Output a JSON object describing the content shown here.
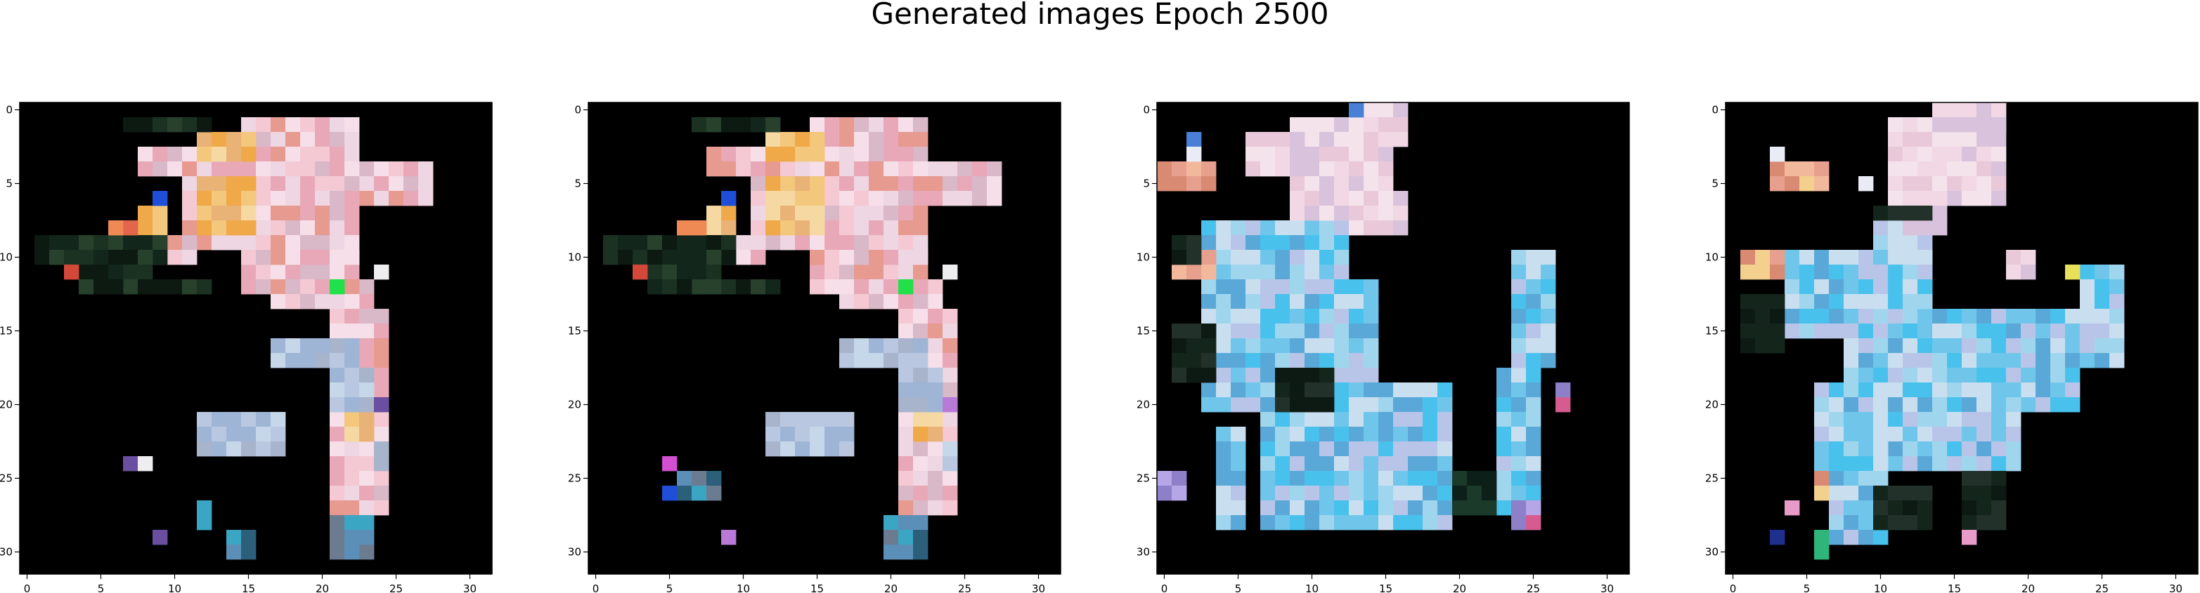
{
  "figure": {
    "title": "Generated images Epoch 2500",
    "background": "#ffffff",
    "image_background": "#000000"
  },
  "panels": [
    {
      "name": "panel-1",
      "xticks": [
        "0",
        "5",
        "10",
        "15",
        "20",
        "25",
        "30"
      ],
      "yticks": [
        "0",
        "5",
        "10",
        "15",
        "20",
        "25",
        "30"
      ],
      "blobs": [
        {
          "palette": [
            "#f4c9d3",
            "#eed6e2",
            "#e8a8b8",
            "#f6dfe8",
            "#d9b8c8",
            "#e79a8f"
          ],
          "cells": [
            [
              4,
              12,
              3,
              16
            ],
            [
              3,
              8,
              2,
              9
            ],
            [
              8,
              12,
              2,
              8
            ],
            [
              12,
              18,
              2,
              6
            ],
            [
              5,
              13,
              5,
              8
            ],
            [
              11,
              15,
              2,
              6
            ],
            [
              5,
              11,
              4,
              8
            ],
            [
              10,
              17,
              4,
              6
            ],
            [
              1,
              15,
              10,
              8
            ],
            [
              14,
              21,
              14,
              4
            ],
            [
              9,
              8,
              2,
              4
            ]
          ]
        },
        {
          "palette": [
            "#f0a948",
            "#f3c77c",
            "#e9b277",
            "#f6d9a2"
          ],
          "cells": [
            [
              2,
              12,
              2,
              4
            ],
            [
              5,
              12,
              4,
              4
            ],
            [
              7,
              8,
              2,
              2
            ],
            [
              19,
              22,
              4,
              2
            ]
          ]
        },
        {
          "palette": [
            "#b9c8e0",
            "#9fb5d6",
            "#c6d7ea",
            "#a8b3cc"
          ],
          "cells": [
            [
              16,
              17,
              2,
              6
            ],
            [
              18,
              21,
              3,
              3
            ],
            [
              21,
              12,
              3,
              6
            ],
            [
              23,
              24,
              2,
              1
            ]
          ]
        },
        {
          "palette": [
            "#0c1a12",
            "#13261c",
            "#1b3223",
            "#27412d"
          ],
          "cells": [
            [
              9,
              1,
              2,
              9
            ],
            [
              12,
              7,
              1,
              6
            ],
            [
              10,
              6,
              3,
              3
            ],
            [
              1,
              7,
              1,
              6
            ],
            [
              11,
              4,
              2,
              3
            ]
          ]
        },
        {
          "palette": [
            "#6b7c91",
            "#5c8fb8",
            "#3aa6c3",
            "#2c5f7a"
          ],
          "cells": [
            [
              28,
              21,
              3,
              3
            ],
            [
              27,
              12,
              2,
              1
            ],
            [
              29,
              14,
              2,
              2
            ]
          ]
        },
        {
          "palette": [
            "#f08a55",
            "#e2664b",
            "#d4483a"
          ],
          "cells": [
            [
              8,
              7,
              1,
              1
            ],
            [
              11,
              3,
              1,
              1
            ],
            [
              8,
              6,
              1,
              1
            ]
          ]
        },
        {
          "palette": [
            "#1f4fd9"
          ],
          "cells": [
            [
              6,
              9,
              1,
              1
            ]
          ]
        },
        {
          "palette": [
            "#22e04a"
          ],
          "cells": [
            [
              12,
              21,
              1,
              1
            ]
          ]
        },
        {
          "palette": [
            "#d24fd2",
            "#6a4fa0"
          ],
          "cells": [
            [
              20,
              24,
              1,
              1
            ],
            [
              29,
              9,
              1,
              1
            ],
            [
              24,
              7,
              1,
              1
            ]
          ]
        },
        {
          "palette": [
            "#eeeef0"
          ],
          "cells": [
            [
              11,
              24,
              1,
              1
            ],
            [
              24,
              8,
              1,
              1
            ]
          ]
        }
      ]
    },
    {
      "name": "panel-2",
      "xticks": [
        "0",
        "5",
        "10",
        "15",
        "20",
        "25",
        "30"
      ],
      "yticks": [
        "0",
        "5",
        "10",
        "15",
        "20",
        "25",
        "30"
      ],
      "blobs": [
        {
          "palette": [
            "#f4c9d3",
            "#eed6e2",
            "#e8a8b8",
            "#f6dfe8",
            "#d9b8c8",
            "#e79a8f"
          ],
          "cells": [
            [
              4,
              12,
              3,
              16
            ],
            [
              3,
              8,
              2,
              9
            ],
            [
              8,
              12,
              2,
              8
            ],
            [
              12,
              18,
              2,
              6
            ],
            [
              5,
              13,
              5,
              8
            ],
            [
              11,
              15,
              2,
              6
            ],
            [
              5,
              11,
              4,
              8
            ],
            [
              10,
              17,
              4,
              6
            ],
            [
              1,
              15,
              10,
              8
            ],
            [
              14,
              21,
              14,
              4
            ],
            [
              9,
              8,
              2,
              4
            ]
          ]
        },
        {
          "palette": [
            "#f0a948",
            "#f3c77c",
            "#e9b277",
            "#f6d9a2"
          ],
          "cells": [
            [
              2,
              12,
              2,
              4
            ],
            [
              5,
              12,
              4,
              4
            ],
            [
              7,
              8,
              2,
              2
            ],
            [
              19,
              22,
              4,
              2
            ]
          ]
        },
        {
          "palette": [
            "#b9c8e0",
            "#9fb5d6",
            "#c6d7ea",
            "#a8b3cc"
          ],
          "cells": [
            [
              16,
              17,
              2,
              6
            ],
            [
              18,
              21,
              3,
              3
            ],
            [
              21,
              12,
              3,
              6
            ],
            [
              23,
              24,
              2,
              1
            ]
          ]
        },
        {
          "palette": [
            "#0c1a12",
            "#13261c",
            "#1b3223",
            "#27412d"
          ],
          "cells": [
            [
              9,
              1,
              2,
              9
            ],
            [
              12,
              7,
              1,
              6
            ],
            [
              10,
              6,
              3,
              3
            ],
            [
              1,
              7,
              1,
              6
            ],
            [
              11,
              4,
              2,
              3
            ]
          ]
        },
        {
          "palette": [
            "#6b7c91",
            "#5c8fb8",
            "#3aa6c3",
            "#2c5f7a"
          ],
          "cells": [
            [
              28,
              20,
              3,
              3
            ],
            [
              25,
              6,
              2,
              3
            ]
          ]
        },
        {
          "palette": [
            "#f08a55",
            "#e2664b",
            "#d4483a"
          ],
          "cells": [
            [
              8,
              7,
              1,
              1
            ],
            [
              11,
              3,
              1,
              1
            ],
            [
              8,
              6,
              1,
              1
            ]
          ]
        },
        {
          "palette": [
            "#1f4fd9"
          ],
          "cells": [
            [
              6,
              9,
              1,
              1
            ],
            [
              26,
              5,
              1,
              1
            ]
          ]
        },
        {
          "palette": [
            "#22e04a"
          ],
          "cells": [
            [
              12,
              21,
              1,
              1
            ]
          ]
        },
        {
          "palette": [
            "#d24fd2",
            "#b87ad6"
          ],
          "cells": [
            [
              20,
              24,
              1,
              1
            ],
            [
              29,
              9,
              1,
              1
            ],
            [
              24,
              5,
              1,
              1
            ]
          ]
        },
        {
          "palette": [
            "#eeeef0"
          ],
          "cells": [
            [
              11,
              24,
              1,
              1
            ]
          ]
        }
      ]
    },
    {
      "name": "panel-3",
      "xticks": [
        "0",
        "5",
        "10",
        "15",
        "20",
        "25",
        "30"
      ],
      "yticks": [
        "0",
        "5",
        "10",
        "15",
        "20",
        "25",
        "30"
      ],
      "blobs": [
        {
          "palette": [
            "#6fc6ea",
            "#48c2ec",
            "#9fd6ee",
            "#5aa8d8",
            "#c9dff0",
            "#b9c5e8"
          ],
          "cells": [
            [
              8,
              3,
              13,
              10
            ],
            [
              12,
              5,
              8,
              10
            ],
            [
              19,
              7,
              10,
              13
            ],
            [
              18,
              23,
              10,
              3
            ],
            [
              10,
              24,
              8,
              3
            ],
            [
              22,
              4,
              7,
              2
            ]
          ]
        },
        {
          "palette": [
            "#f1d8e4",
            "#e9c9d9",
            "#f5e3ec",
            "#d9c3dc"
          ],
          "cells": [
            [
              1,
              9,
              7,
              7
            ],
            [
              0,
              13,
              3,
              4
            ],
            [
              2,
              6,
              3,
              4
            ],
            [
              6,
              13,
              3,
              4
            ]
          ]
        },
        {
          "palette": [
            "#e6a08d",
            "#d98a73",
            "#f2b89c"
          ],
          "cells": [
            [
              4,
              0,
              2,
              4
            ],
            [
              10,
              1,
              2,
              3
            ]
          ]
        },
        {
          "palette": [
            "#0d1a14",
            "#14261c",
            "#22322a"
          ],
          "cells": [
            [
              15,
              1,
              4,
              3
            ],
            [
              9,
              1,
              2,
              2
            ],
            [
              18,
              8,
              3,
              4
            ]
          ]
        },
        {
          "palette": [
            "#8e7fc9",
            "#b6a6e8",
            "#d65c8f"
          ],
          "cells": [
            [
              25,
              0,
              2,
              2
            ],
            [
              27,
              24,
              2,
              2
            ],
            [
              19,
              27,
              2,
              1
            ]
          ]
        },
        {
          "palette": [
            "#4a7fd6",
            "#e9ecf5"
          ],
          "cells": [
            [
              0,
              13,
              1,
              1
            ],
            [
              2,
              2,
              1,
              1
            ],
            [
              3,
              2,
              1,
              1
            ]
          ]
        },
        {
          "palette": [
            "#0c1f18",
            "#1c3a2a"
          ],
          "cells": [
            [
              25,
              20,
              3,
              3
            ]
          ]
        }
      ]
    },
    {
      "name": "panel-4",
      "xticks": [
        "0",
        "5",
        "10",
        "15",
        "20",
        "25",
        "30"
      ],
      "yticks": [
        "0",
        "5",
        "10",
        "15",
        "20",
        "25",
        "30"
      ],
      "blobs": [
        {
          "palette": [
            "#6fc6ea",
            "#48c2ec",
            "#9fd6ee",
            "#5aa8d8",
            "#c9dff0",
            "#b9c5e8"
          ],
          "cells": [
            [
              10,
              4,
              6,
              10
            ],
            [
              14,
              8,
              7,
              16
            ],
            [
              19,
              6,
              6,
              14
            ],
            [
              22,
              7,
              8,
              4
            ],
            [
              11,
              24,
              7,
              3
            ],
            [
              8,
              10,
              6,
              4
            ]
          ]
        },
        {
          "palette": [
            "#f1d8e4",
            "#e9c9d9",
            "#f5e3ec",
            "#d9c3dc"
          ],
          "cells": [
            [
              1,
              11,
              6,
              8
            ],
            [
              0,
              14,
              2,
              5
            ],
            [
              6,
              12,
              3,
              3
            ],
            [
              10,
              19,
              2,
              2
            ]
          ]
        },
        {
          "palette": [
            "#e6a08d",
            "#d98a73",
            "#f2b89c",
            "#f3d08e"
          ],
          "cells": [
            [
              4,
              3,
              2,
              4
            ],
            [
              10,
              1,
              2,
              3
            ],
            [
              25,
              6,
              2,
              1
            ]
          ]
        },
        {
          "palette": [
            "#0d1a14",
            "#14261c",
            "#22322a"
          ],
          "cells": [
            [
              13,
              1,
              4,
              3
            ],
            [
              7,
              10,
              1,
              4
            ],
            [
              26,
              10,
              3,
              4
            ],
            [
              25,
              16,
              4,
              3
            ]
          ]
        },
        {
          "palette": [
            "#52c77a",
            "#2fb57a",
            "#e8e05a"
          ],
          "cells": [
            [
              29,
              6,
              2,
              1
            ],
            [
              11,
              23,
              1,
              1
            ]
          ]
        },
        {
          "palette": [
            "#8e7fc9",
            "#1e2f8e",
            "#e89bc8"
          ],
          "cells": [
            [
              27,
              4,
              1,
              1
            ],
            [
              29,
              3,
              1,
              1
            ],
            [
              29,
              16,
              1,
              1
            ]
          ]
        },
        {
          "palette": [
            "#e9ecf5"
          ],
          "cells": [
            [
              3,
              3,
              1,
              1
            ],
            [
              5,
              9,
              1,
              1
            ]
          ]
        }
      ]
    }
  ]
}
